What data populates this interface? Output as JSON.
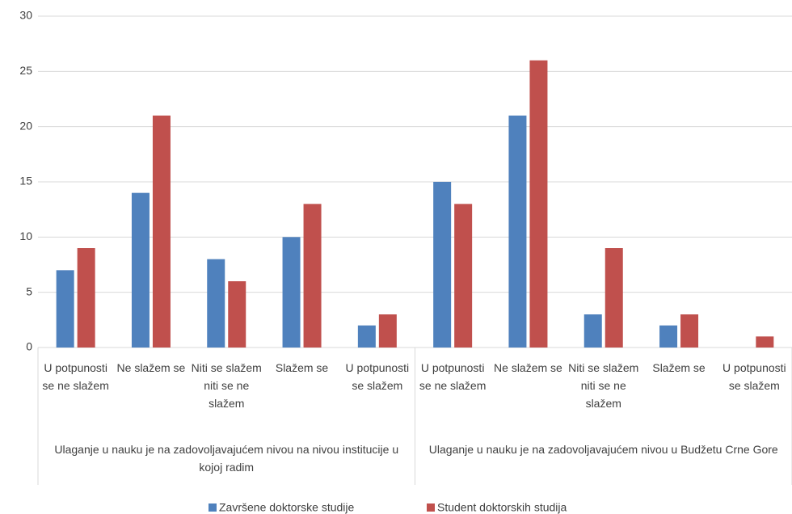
{
  "chart_data": {
    "type": "bar",
    "categories": [
      "U potpunosti se ne slažem",
      "Ne slažem se",
      "Niti se slažem niti se ne slažem",
      "Slažem se",
      "U potpunosti se slažem",
      "U potpunosti se ne slažem",
      "Ne slažem se",
      "Niti se slažem niti se ne slažem",
      "Slažem se",
      "U potpunosti se slažem"
    ],
    "category_groups": [
      "Ulaganje u nauku je na zadovoljavajućem nivou na nivou institucije u kojoj radim",
      "Ulaganje u nauku je na zadovoljavajućem nivou u Budžetu Crne Gore"
    ],
    "series": [
      {
        "name": "Završene doktorske studije",
        "color": "#4f81bd",
        "values": [
          7,
          14,
          8,
          10,
          2,
          15,
          21,
          3,
          2,
          0
        ]
      },
      {
        "name": "Student doktorskih studija",
        "color": "#c0504d",
        "values": [
          9,
          21,
          6,
          13,
          3,
          13,
          26,
          9,
          3,
          1
        ]
      }
    ],
    "ylim": [
      0,
      30
    ],
    "yticks": [
      0,
      5,
      10,
      15,
      20,
      25,
      30
    ],
    "grid": true,
    "legend": "bottom"
  }
}
